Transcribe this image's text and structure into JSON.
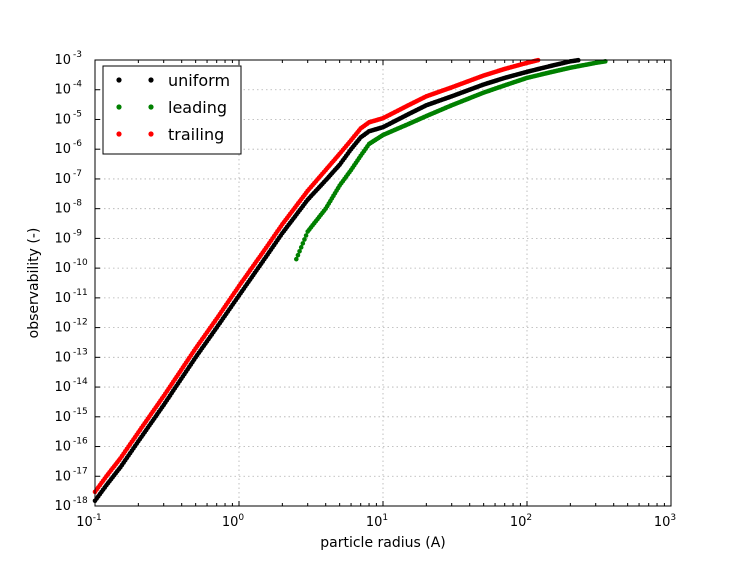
{
  "chart_data": {
    "type": "scatter",
    "title": "",
    "xlabel": "particle radius (A)",
    "ylabel": "observability (-)",
    "xscale": "log",
    "yscale": "log",
    "xlim": [
      0.1,
      1000
    ],
    "ylim": [
      1e-18,
      0.001
    ],
    "grid": true,
    "legend_position": "top-left",
    "x_ticks": [
      {
        "base": "10",
        "exp": "-1",
        "value": 0.1
      },
      {
        "base": "10",
        "exp": "0",
        "value": 1
      },
      {
        "base": "10",
        "exp": "1",
        "value": 10
      },
      {
        "base": "10",
        "exp": "2",
        "value": 100
      },
      {
        "base": "10",
        "exp": "3",
        "value": 1000
      }
    ],
    "y_ticks": [
      {
        "base": "10",
        "exp": "-18",
        "value": 1e-18
      },
      {
        "base": "10",
        "exp": "-17",
        "value": 1e-17
      },
      {
        "base": "10",
        "exp": "-16",
        "value": 1e-16
      },
      {
        "base": "10",
        "exp": "-15",
        "value": 1e-15
      },
      {
        "base": "10",
        "exp": "-14",
        "value": 1e-14
      },
      {
        "base": "10",
        "exp": "-13",
        "value": 1e-13
      },
      {
        "base": "10",
        "exp": "-12",
        "value": 1e-12
      },
      {
        "base": "10",
        "exp": "-11",
        "value": 1e-11
      },
      {
        "base": "10",
        "exp": "-10",
        "value": 1e-10
      },
      {
        "base": "10",
        "exp": "-9",
        "value": 1e-09
      },
      {
        "base": "10",
        "exp": "-8",
        "value": 1e-08
      },
      {
        "base": "10",
        "exp": "-7",
        "value": 1e-07
      },
      {
        "base": "10",
        "exp": "-6",
        "value": 1e-06
      },
      {
        "base": "10",
        "exp": "-5",
        "value": 1e-05
      },
      {
        "base": "10",
        "exp": "-4",
        "value": 0.0001
      },
      {
        "base": "10",
        "exp": "-3",
        "value": 0.001
      }
    ],
    "series": [
      {
        "name": "uniform",
        "color": "#000000",
        "x": [
          0.1,
          0.12,
          0.15,
          0.2,
          0.3,
          0.5,
          0.7,
          1,
          1.5,
          2,
          3,
          4,
          5,
          6,
          7,
          8,
          10,
          15,
          20,
          30,
          50,
          70,
          100,
          150,
          200,
          300,
          350
        ],
        "y": [
          1.5e-18,
          5e-18,
          2e-17,
          1.5e-16,
          2.5e-15,
          1e-13,
          1e-12,
          1.2e-11,
          2e-10,
          1.5e-09,
          2e-08,
          9e-08,
          3e-07,
          1e-06,
          2.5e-06,
          4e-06,
          5.5e-06,
          1.5e-05,
          3e-05,
          6e-05,
          0.00015,
          0.00025,
          0.0004,
          0.00065,
          0.0009,
          0.0012,
          0.0014
        ]
      },
      {
        "name": "leading",
        "color": "#008000",
        "x": [
          2.5,
          3,
          4,
          5,
          6,
          7,
          8,
          10,
          15,
          20,
          30,
          50,
          70,
          100,
          150,
          200,
          300,
          350
        ],
        "y": [
          2e-10,
          1.7e-09,
          1e-08,
          6e-08,
          2e-07,
          6e-07,
          1.5e-06,
          3e-06,
          7e-06,
          1.3e-05,
          3e-05,
          8e-05,
          0.00014,
          0.00025,
          0.0004,
          0.00055,
          0.0008,
          0.0009
        ]
      },
      {
        "name": "trailing",
        "color": "#ff0000",
        "x": [
          0.1,
          0.12,
          0.15,
          0.2,
          0.3,
          0.5,
          0.7,
          1,
          1.5,
          2,
          3,
          4,
          5,
          6,
          7,
          8,
          10,
          15,
          20,
          30,
          50,
          70,
          100,
          150,
          200,
          300,
          350
        ],
        "y": [
          3e-18,
          1e-17,
          4e-17,
          3e-16,
          5e-15,
          2e-13,
          2e-12,
          2.5e-11,
          4e-10,
          3e-09,
          4e-08,
          2e-07,
          7e-07,
          2e-06,
          5e-06,
          8e-06,
          1.1e-05,
          3e-05,
          6e-05,
          0.00012,
          0.0003,
          0.0005,
          0.0008,
          0.0013,
          0.0018,
          0.0025,
          0.0028
        ]
      }
    ]
  }
}
